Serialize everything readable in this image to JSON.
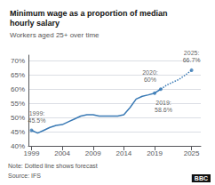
{
  "chart_data": {
    "type": "line",
    "title": "Minimum wage as a proportion of median\nhourly salary",
    "subtitle": "Workers aged 25+ over time",
    "note": "Note: Dotted line shows forecast",
    "source": "Source: IFS",
    "logo": "BBC",
    "x": [
      1999,
      2000,
      2001,
      2002,
      2003,
      2004,
      2005,
      2006,
      2007,
      2008,
      2009,
      2010,
      2011,
      2012,
      2013,
      2014,
      2015,
      2016,
      2017,
      2018,
      2019,
      2020,
      2021,
      2022,
      2023,
      2024,
      2025
    ],
    "series": [
      {
        "values": [
          45.5,
          44.5,
          45.5,
          46.5,
          47.2,
          47.5,
          48.5,
          49.5,
          50.5,
          51.0,
          51.0,
          50.5,
          50.5,
          50.5,
          50.5,
          51.0,
          53.5,
          56.5,
          57.5,
          58.0,
          58.6,
          60.0,
          null,
          null,
          null,
          null,
          null
        ],
        "color": "#3a7ab5",
        "line_style": "solid"
      },
      {
        "values": [
          null,
          null,
          null,
          null,
          null,
          null,
          null,
          null,
          null,
          null,
          null,
          null,
          null,
          null,
          null,
          null,
          null,
          null,
          null,
          null,
          null,
          60.0,
          61.5,
          62.5,
          63.5,
          65.0,
          66.7
        ],
        "color": "#3a7ab5",
        "line_style": "dotted"
      }
    ],
    "annotations": [
      {
        "text": "1999:\n45.5%",
        "x": 1999,
        "y": 45.5
      },
      {
        "text": "2019:\n58.6%",
        "x": 2019,
        "y": 58.6
      },
      {
        "text": "2020:\n60%",
        "x": 2020,
        "y": 60.0
      },
      {
        "text": "2025:\n66.7%",
        "x": 2025,
        "y": 66.7
      }
    ],
    "xlim": [
      1998.5,
      2026.5
    ],
    "ylim": [
      40,
      72
    ],
    "xticks": [
      1999,
      2004,
      2009,
      2014,
      2019,
      2025
    ],
    "yticks": [
      {
        "value": 40,
        "label": "40%"
      },
      {
        "value": 45,
        "label": "45%"
      },
      {
        "value": 50,
        "label": "50%"
      },
      {
        "value": 55,
        "label": "55%"
      },
      {
        "value": 60,
        "label": "60%"
      },
      {
        "value": 65,
        "label": "65%"
      },
      {
        "value": 70,
        "label": "70%"
      }
    ],
    "grid": true
  }
}
